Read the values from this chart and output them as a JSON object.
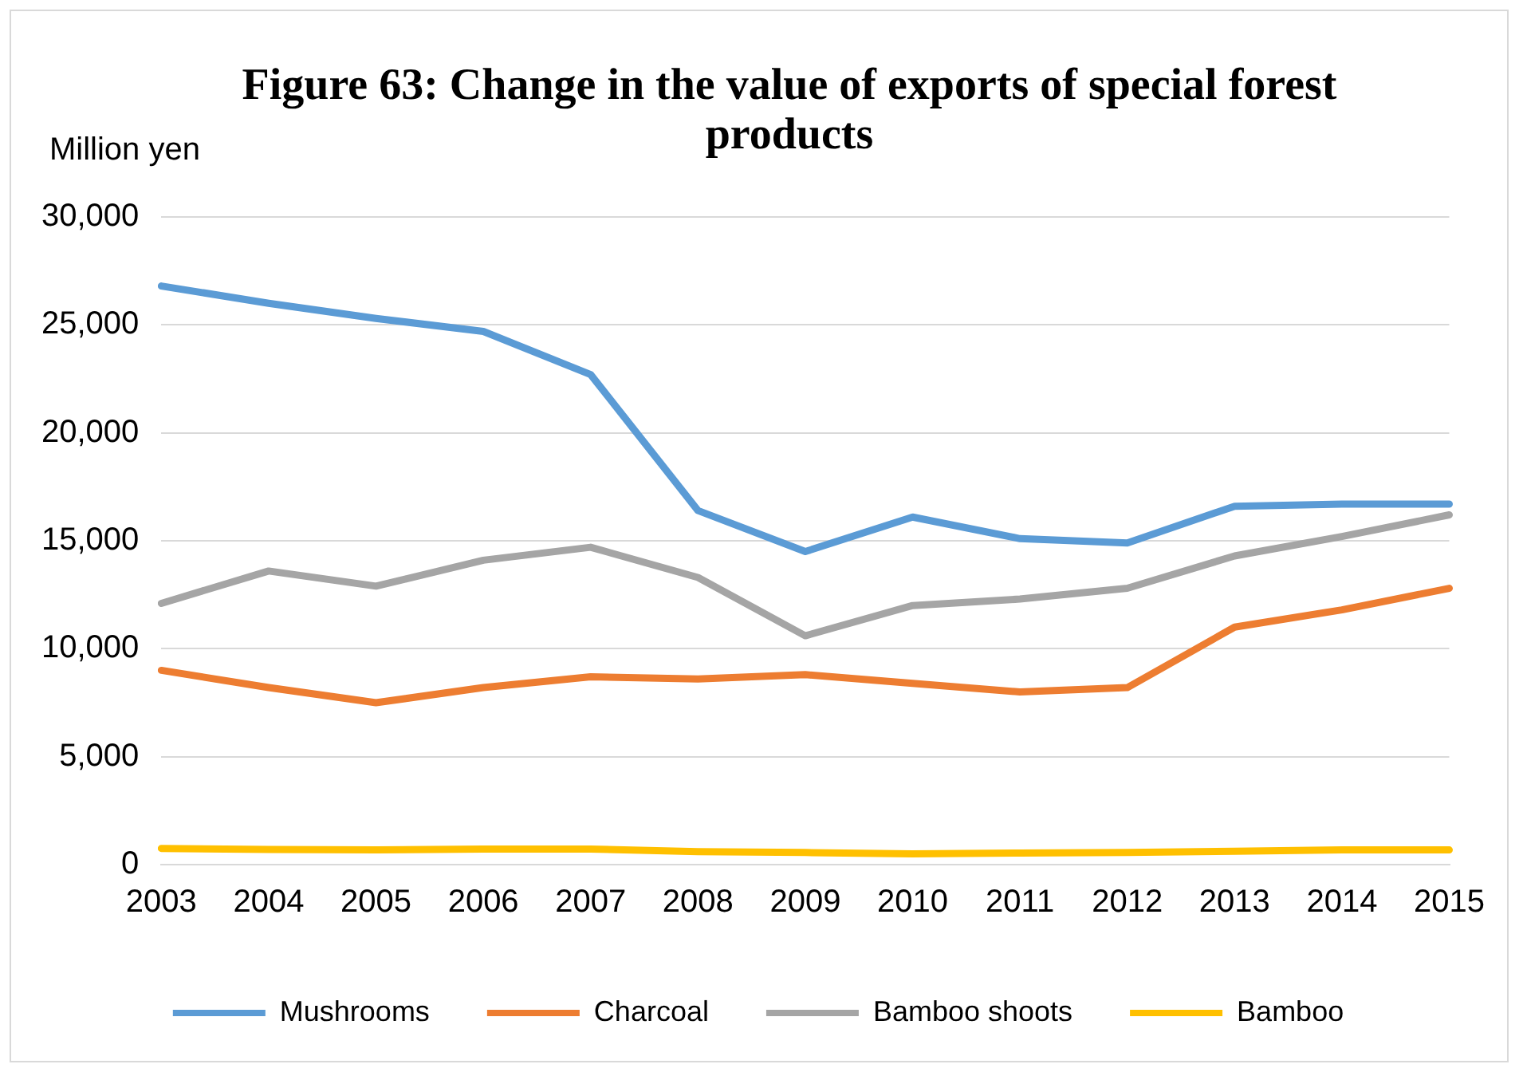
{
  "chart_data": {
    "type": "line",
    "title": "Figure 63: Change in the value of exports of special forest products",
    "ylabel": "Million yen",
    "categories": [
      "2003",
      "2004",
      "2005",
      "2006",
      "2007",
      "2008",
      "2009",
      "2010",
      "2011",
      "2012",
      "2013",
      "2014",
      "2015"
    ],
    "series": [
      {
        "name": "Mushrooms",
        "color": "#5b9bd5",
        "values": [
          26800,
          26000,
          25300,
          24700,
          22700,
          16400,
          14500,
          16100,
          15100,
          14900,
          16600,
          16700,
          16700
        ]
      },
      {
        "name": "Charcoal",
        "color": "#ed7d31",
        "values": [
          9000,
          8200,
          7500,
          8200,
          8700,
          8600,
          8800,
          8400,
          8000,
          8200,
          11000,
          11800,
          12800
        ]
      },
      {
        "name": "Bamboo shoots",
        "color": "#a5a5a5",
        "values": [
          12100,
          13600,
          12900,
          14100,
          14700,
          13300,
          10600,
          12000,
          12300,
          12800,
          14300,
          15200,
          16200
        ]
      },
      {
        "name": "Bamboo",
        "color": "#ffc000",
        "values": [
          750,
          700,
          680,
          720,
          720,
          600,
          560,
          500,
          540,
          560,
          620,
          680,
          680
        ]
      }
    ],
    "ylim": [
      0,
      30000
    ],
    "yticks": [
      0,
      {
        "value": 5000,
        "label": "5,000"
      },
      {
        "value": 10000,
        "label": "10,000"
      },
      {
        "value": 15000,
        "label": "15,000"
      },
      {
        "value": 20000,
        "label": "20,000"
      },
      {
        "value": 25000,
        "label": "25,000"
      },
      {
        "value": 30000,
        "label": "30,000"
      }
    ],
    "grid": "y",
    "legend": "bottom",
    "marker": "none",
    "line_style": "solid"
  }
}
